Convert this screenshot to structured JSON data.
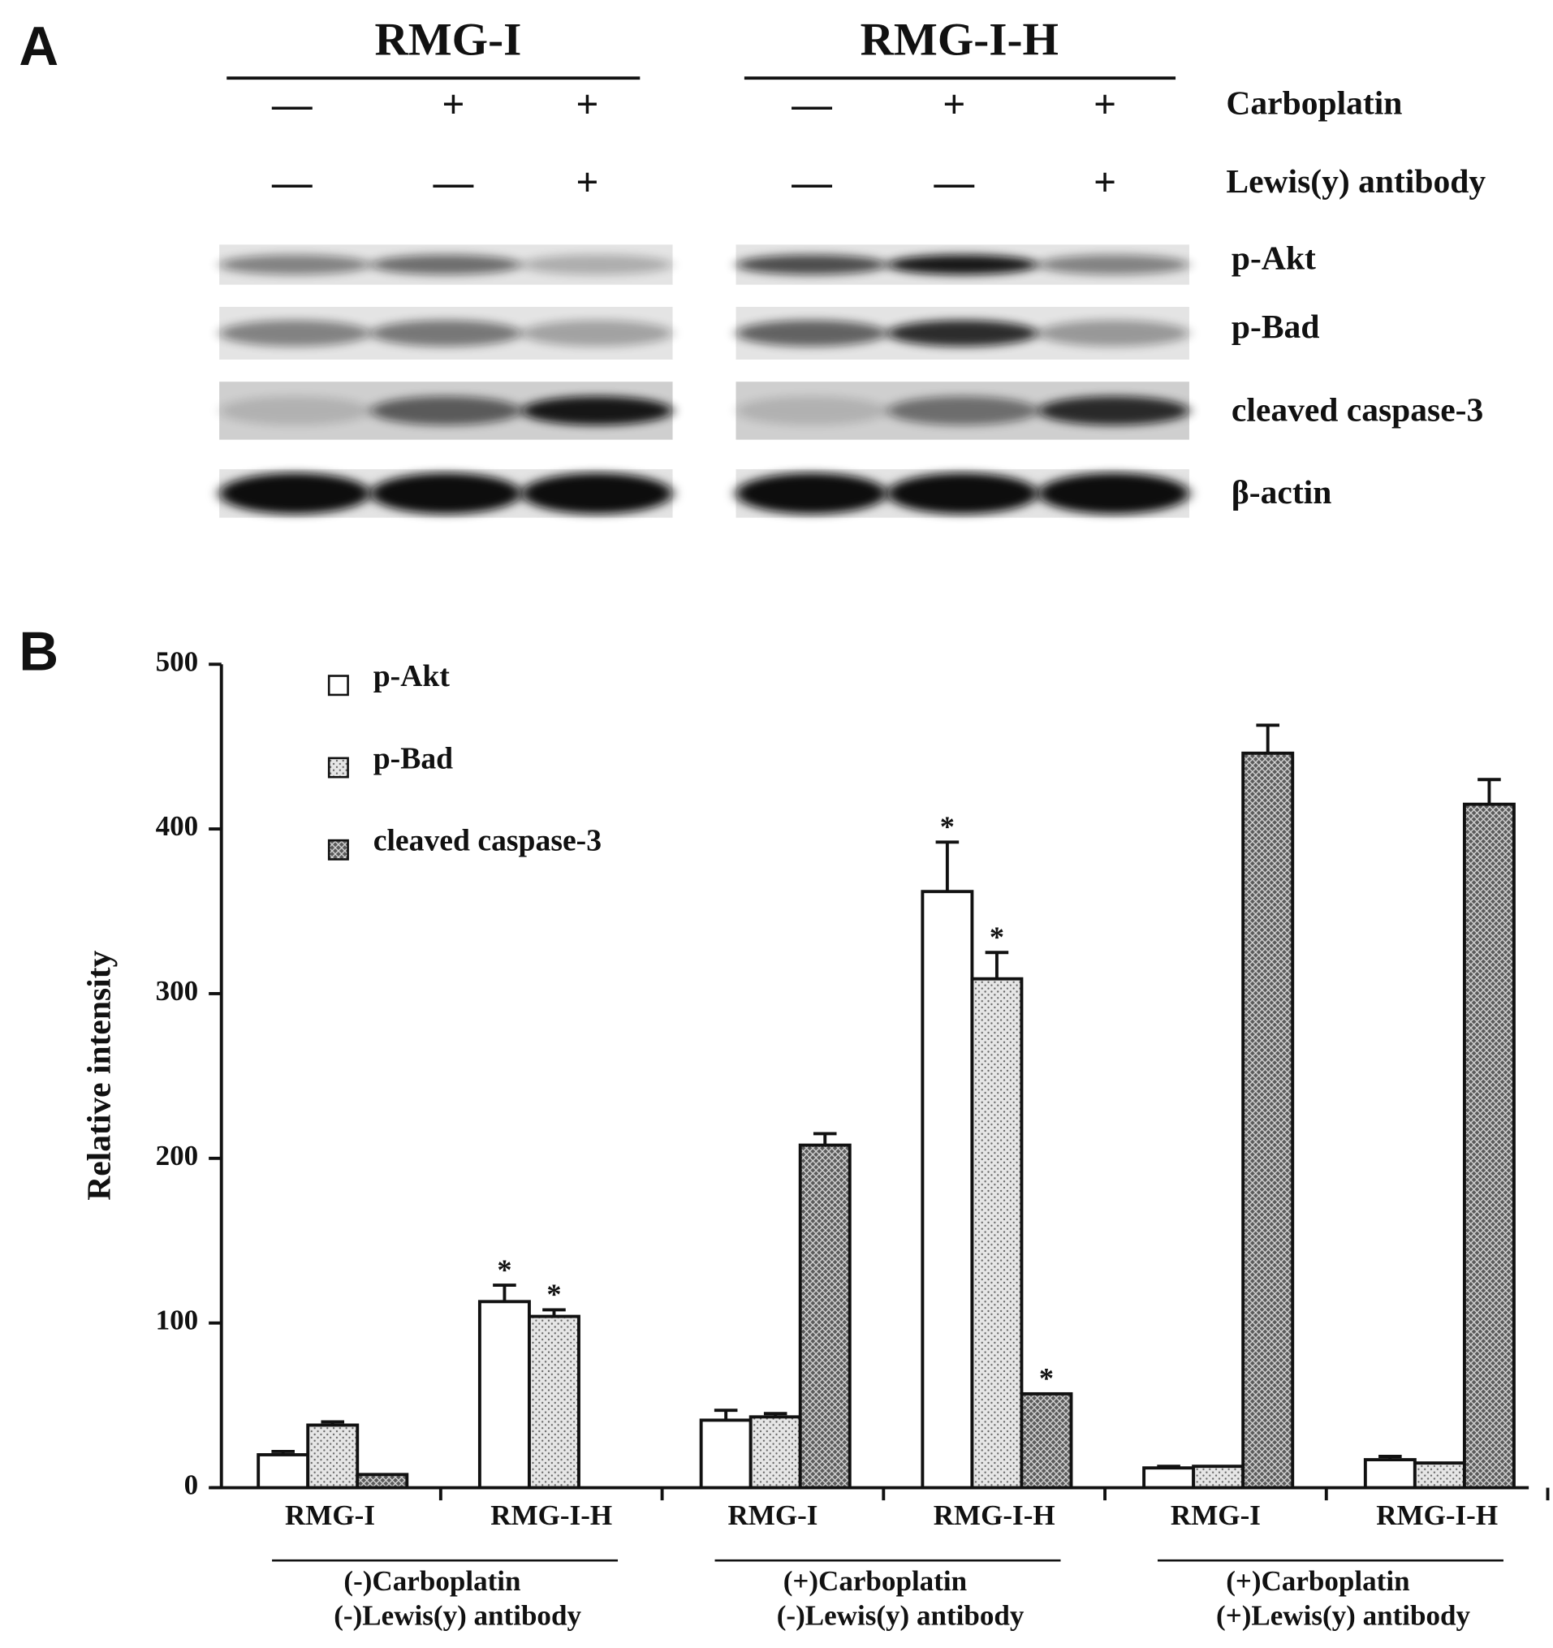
{
  "panel_a": {
    "label": "A",
    "groups": [
      "RMG-I",
      "RMG-I-H"
    ],
    "treatments": [
      {
        "label": "Carboplatin",
        "signs": [
          "—",
          "+",
          "+",
          "—",
          "+",
          "+"
        ]
      },
      {
        "label": "Lewis(y) antibody",
        "signs": [
          "—",
          "—",
          "+",
          "—",
          "—",
          "+"
        ]
      }
    ],
    "blots": [
      "p-Akt",
      "p-Bad",
      "cleaved caspase-3",
      "β-actin"
    ]
  },
  "chart_data": {
    "panel_label": "B",
    "type": "bar",
    "y_label": "Relative intensity",
    "categories": [
      "RMG-I",
      "RMG-I-H",
      "RMG-I",
      "RMG-I-H",
      "RMG-I",
      "RMG-I-H"
    ],
    "groups": [
      [
        "(-)Carboplatin",
        "(-)Lewis(y) antibody"
      ],
      [
        "(+)Carboplatin",
        "(-)Lewis(y) antibody"
      ],
      [
        "(+)Carboplatin",
        "(+)Lewis(y) antibody"
      ]
    ],
    "series": [
      {
        "name": "p-Akt",
        "color": "#ffffff",
        "pattern": "none",
        "values": [
          20,
          113,
          41,
          362,
          12,
          17
        ],
        "errors": [
          2,
          10,
          6,
          30,
          1,
          2
        ],
        "markers": [
          null,
          "*",
          null,
          "*",
          null,
          null
        ]
      },
      {
        "name": "p-Bad",
        "color": "#e6e6e6",
        "pattern": "dots",
        "values": [
          38,
          104,
          43,
          309,
          13,
          15
        ],
        "errors": [
          2,
          4,
          2,
          16,
          null,
          null
        ],
        "markers": [
          null,
          "*",
          null,
          "*",
          null,
          null
        ]
      },
      {
        "name": "cleaved caspase-3",
        "color": "#5a5a5a",
        "pattern": "crosshatch",
        "values": [
          8,
          null,
          208,
          57,
          446,
          415
        ],
        "errors": [
          null,
          null,
          7,
          null,
          17,
          15
        ],
        "markers": [
          null,
          null,
          null,
          "*",
          null,
          null
        ]
      }
    ],
    "ylim": [
      0,
      500
    ],
    "yticks": [
      0,
      100,
      200,
      300,
      400,
      500
    ],
    "legend": "top-left"
  }
}
